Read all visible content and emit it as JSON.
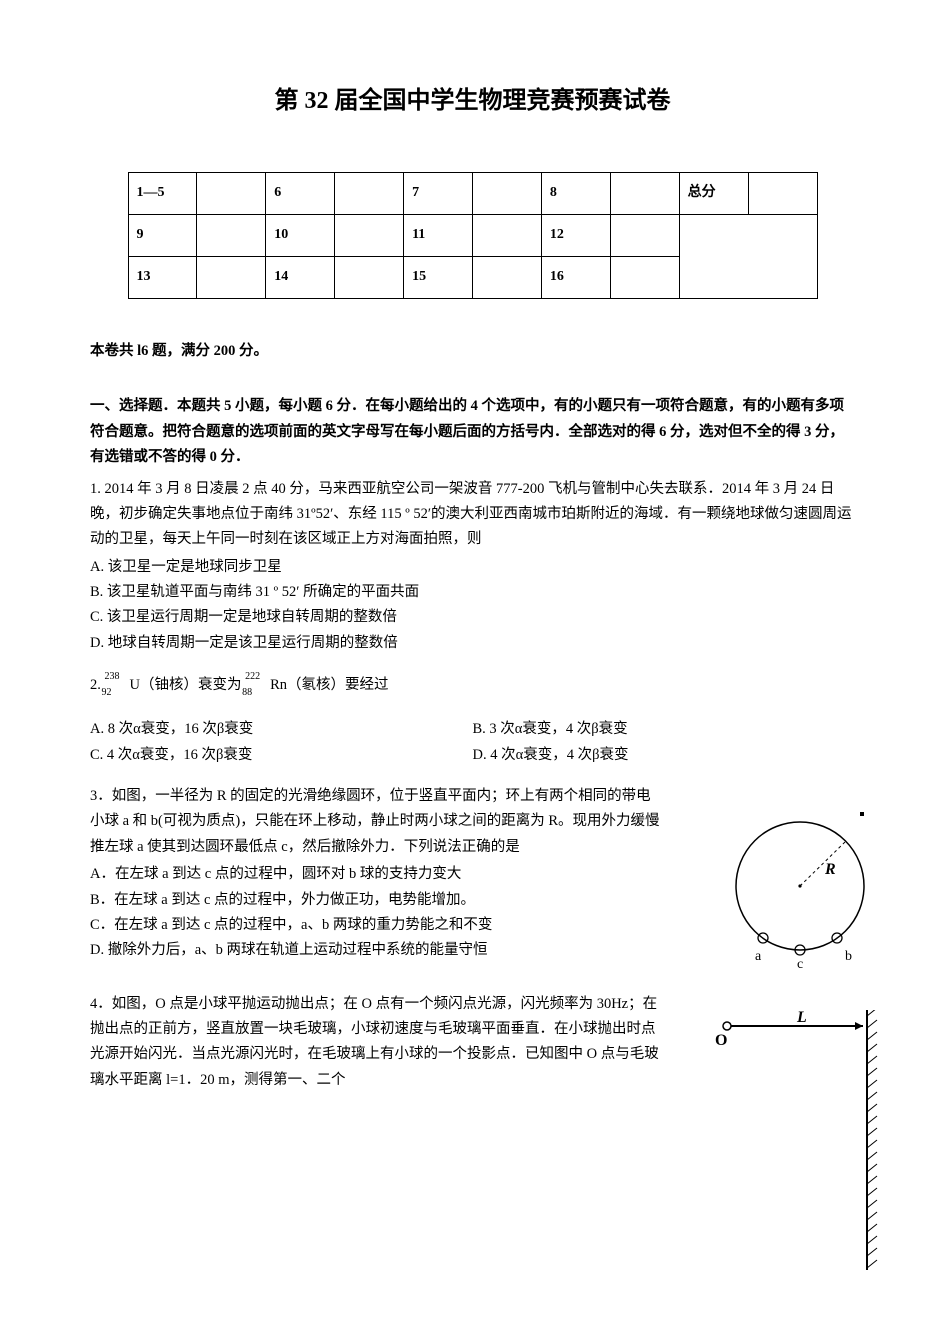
{
  "title": "第 32 届全国中学生物理竞赛预赛试卷",
  "score_table": {
    "rows": [
      [
        {
          "text": "1—5"
        },
        {
          "text": ""
        },
        {
          "text": "6"
        },
        {
          "text": ""
        },
        {
          "text": "7"
        },
        {
          "text": ""
        },
        {
          "text": "8"
        },
        {
          "text": ""
        },
        {
          "text": "总分"
        },
        {
          "text": ""
        }
      ],
      [
        {
          "text": "9"
        },
        {
          "text": ""
        },
        {
          "text": "10"
        },
        {
          "text": ""
        },
        {
          "text": "11"
        },
        {
          "text": ""
        },
        {
          "text": "12"
        },
        {
          "text": ""
        },
        {
          "text": "",
          "colspan": 2,
          "rowspan": 2
        }
      ],
      [
        {
          "text": "13"
        },
        {
          "text": ""
        },
        {
          "text": "14"
        },
        {
          "text": ""
        },
        {
          "text": "15"
        },
        {
          "text": ""
        },
        {
          "text": "16"
        },
        {
          "text": ""
        }
      ]
    ]
  },
  "info_line": "本卷共 l6 题，满分 200 分。",
  "section1_head": "一、选择题．本题共 5 小题，每小题 6 分．在每小题给出的 4 个选项中，有的小题只有一项符合题意，有的小题有多项符合题意。把符合题意的选项前面的英文字母写在每小题后面的方括号内．全部选对的得 6 分，选对但不全的得 3 分，有选错或不答的得 0 分．",
  "q1": {
    "body": "1. 2014 年 3 月 8 日凌晨 2 点 40 分，马来西亚航空公司一架波音 777-200 飞机与管制中心失去联系．2014 年 3 月 24 日晚，初步确定失事地点位于南纬 31º52′、东经 115 º 52′的澳大利亚西南城市珀斯附近的海域．有一颗绕地球做匀速圆周运动的卫星，每天上午同一时刻在该区域正上方对海面拍照，则",
    "A": "A. 该卫星一定是地球同步卫星",
    "B": "B. 该卫星轨道平面与南纬 31 º 52′ 所确定的平面共面",
    "C": "C. 该卫星运行周期一定是地球自转周期的整数倍",
    "D": "D. 地球自转周期一定是该卫星运行周期的整数倍"
  },
  "q2": {
    "body_prefix": "2. ",
    "nuc1_top": "238",
    "nuc1_bot": "92",
    "sym1": "U（铀核）衰变为 ",
    "nuc2_top": "222",
    "nuc2_bot": "88",
    "sym2": "Rn（氡核）要经过",
    "A": "A. 8 次α衰变，16 次β衰变",
    "B": "B. 3 次α衰变，4 次β衰变",
    "C": "C. 4 次α衰变，16 次β衰变",
    "D": "D. 4 次α衰变，4 次β衰变"
  },
  "q3": {
    "body": "3．如图，一半径为 R 的固定的光滑绝缘圆环，位于竖直平面内；环上有两个相同的带电小球 a 和 b(可视为质点)，只能在环上移动，静止时两小球之间的距离为 R。现用外力缓慢推左球 a 使其到达圆环最低点 c，然后撤除外力．下列说法正确的是",
    "A": "A．在左球 a 到达 c 点的过程中，圆环对 b 球的支持力变大",
    "B": "B．在左球 a 到达 c 点的过程中，外力做正功，电势能增加。",
    "C": "C．在左球 a 到达 c 点的过程中，a、b 两球的重力势能之和不变",
    "D": "D. 撤除外力后，a、b 两球在轨道上运动过程中系统的能量守恒",
    "fig": {
      "radius_label": "R",
      "point_a": "a",
      "point_b": "b",
      "point_c": "c",
      "stroke": "#000000"
    }
  },
  "q4": {
    "body": "4．如图，O 点是小球平抛运动抛出点；在 O 点有一个频闪点光源，闪光频率为 30Hz；在抛出点的正前方，竖直放置一块毛玻璃，小球初速度与毛玻璃平面垂直．在小球抛出时点光源开始闪光．当点光源闪光时，在毛玻璃上有小球的一个投影点．已知图中 O 点与毛玻璃水平距离 l=1．20 m，测得第一、二个",
    "fig": {
      "origin_label": "O",
      "L_label": "L",
      "stroke": "#000000",
      "hatch_color": "#000000"
    }
  }
}
